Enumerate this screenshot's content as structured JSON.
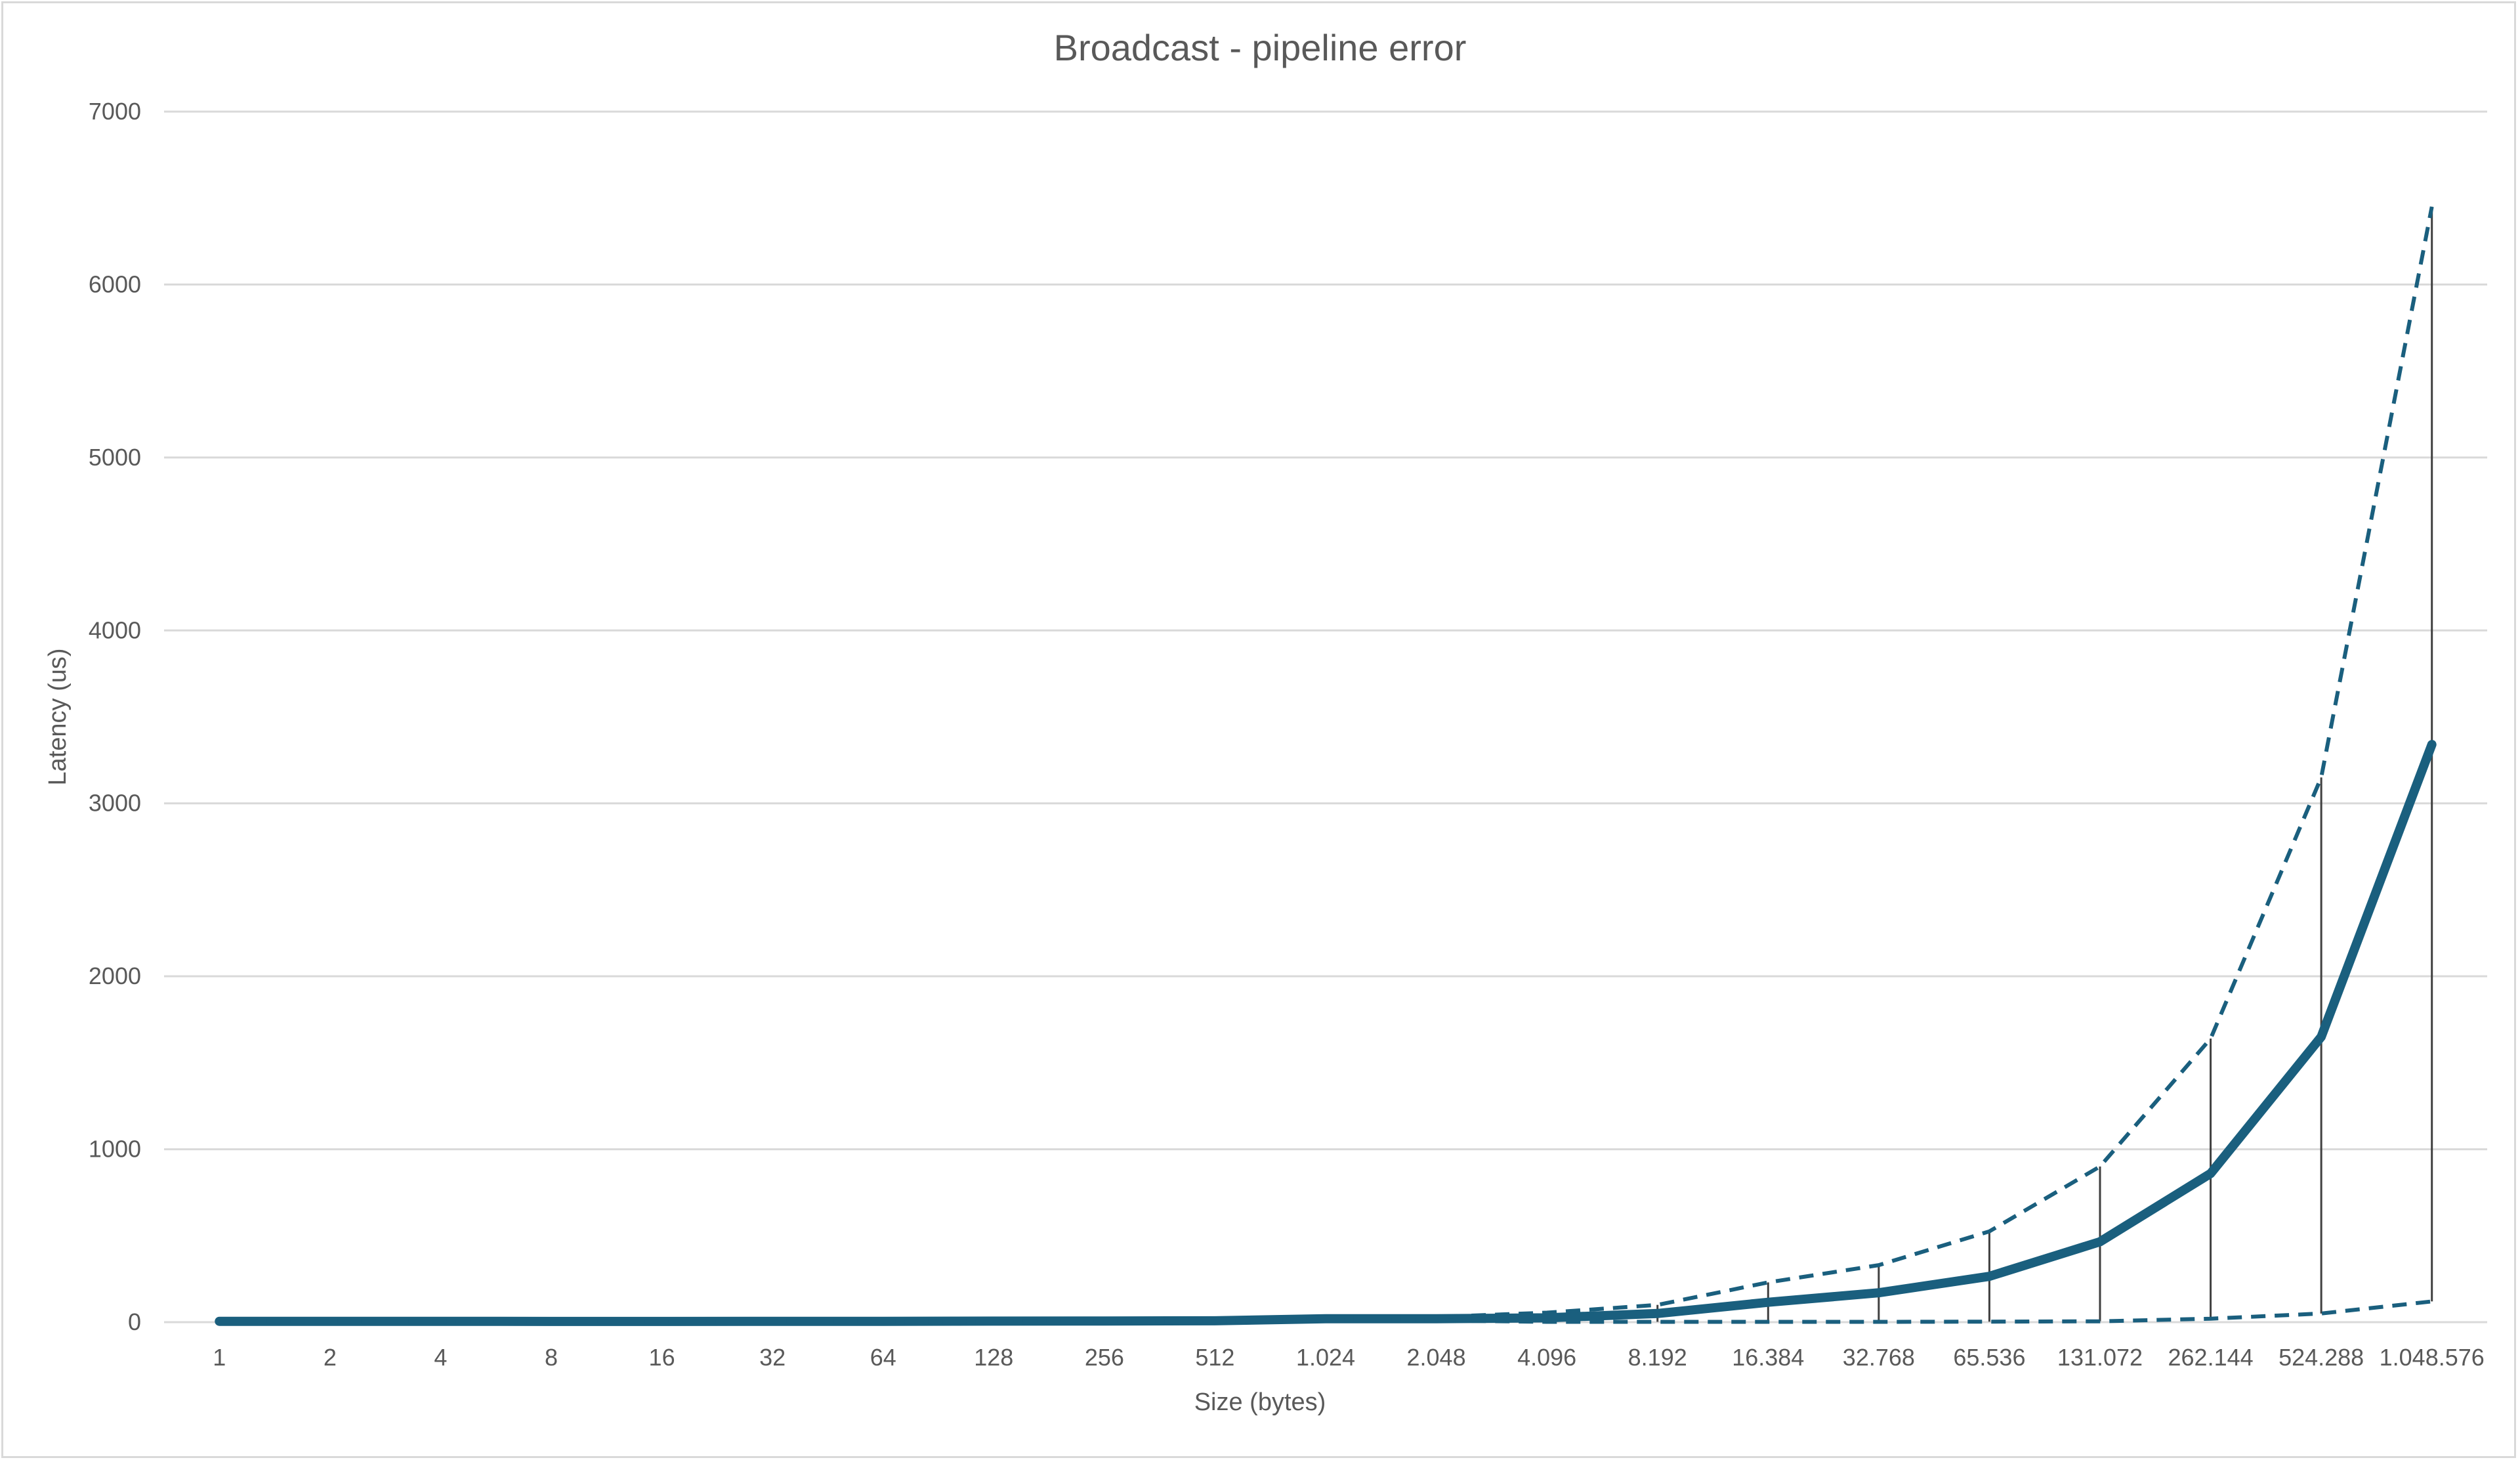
{
  "chart_data": {
    "type": "line",
    "title": "Broadcast - pipeline error",
    "xlabel": "Size (bytes)",
    "ylabel": "Latency (us)",
    "categories": [
      "1",
      "2",
      "4",
      "8",
      "16",
      "32",
      "64",
      "128",
      "256",
      "512",
      "1.024",
      "2.048",
      "4.096",
      "8.192",
      "16.384",
      "32.768",
      "65.536",
      "131.072",
      "262.144",
      "524.288",
      "1.048.576"
    ],
    "ylim": [
      0,
      7000
    ],
    "yticks": [
      0,
      1000,
      2000,
      3000,
      4000,
      5000,
      6000,
      7000
    ],
    "grid": true,
    "colors": {
      "series": "#1a5f7e",
      "error_bar": "#404040",
      "grid": "#d9d9d9",
      "text": "#595959"
    },
    "series": [
      {
        "style": "solid",
        "values": [
          5,
          5,
          5,
          4,
          4,
          5,
          5,
          6,
          7,
          8,
          20,
          20,
          25,
          50,
          115,
          170,
          265,
          465,
          860,
          1650,
          3340
        ]
      },
      {
        "style": "dashed",
        "values": [
          6,
          6,
          6,
          5,
          5,
          6,
          6,
          7,
          8,
          9,
          30,
          30,
          55,
          100,
          230,
          330,
          525,
          900,
          1640,
          3150,
          6450
        ]
      },
      {
        "style": "dashed",
        "values": [
          4,
          4,
          4,
          3,
          3,
          4,
          4,
          5,
          6,
          7,
          10,
          10,
          2,
          2,
          2,
          2,
          3,
          5,
          20,
          50,
          120
        ]
      }
    ],
    "error_bars": {
      "lower": [
        4,
        4,
        4,
        3,
        3,
        4,
        4,
        5,
        6,
        7,
        10,
        10,
        2,
        2,
        2,
        2,
        3,
        5,
        20,
        50,
        120
      ],
      "upper": [
        6,
        6,
        6,
        5,
        5,
        6,
        6,
        7,
        8,
        9,
        30,
        30,
        55,
        100,
        230,
        330,
        525,
        900,
        1640,
        3150,
        6450
      ]
    }
  }
}
